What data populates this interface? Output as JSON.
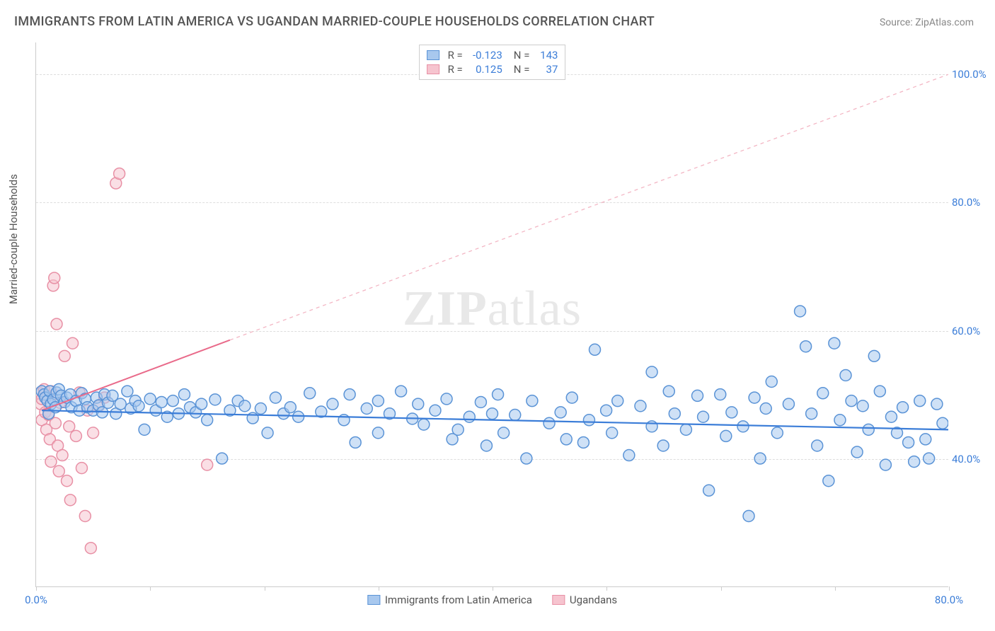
{
  "title": "IMMIGRANTS FROM LATIN AMERICA VS UGANDAN MARRIED-COUPLE HOUSEHOLDS CORRELATION CHART",
  "source": "Source: ZipAtlas.com",
  "ylabel": "Married-couple Households",
  "watermark": "ZIPatlas",
  "chart": {
    "type": "scatter",
    "xlim": [
      0,
      80
    ],
    "ylim": [
      20,
      105
    ],
    "x_ticks": [
      0,
      10,
      20,
      30,
      40,
      50,
      60,
      70,
      80
    ],
    "x_tick_labels": {
      "0": "0.0%",
      "80": "80.0%"
    },
    "y_gridlines": [
      40,
      60,
      80,
      100
    ],
    "y_tick_labels": {
      "40": "40.0%",
      "60": "60.0%",
      "80": "80.0%",
      "100": "100.0%"
    },
    "background_color": "#ffffff",
    "grid_color": "#dddddd",
    "axis_color": "#cccccc",
    "ytick_color": "#3b7dd8",
    "x_label_left_color": "#3b7dd8",
    "x_label_right_color": "#3b7dd8",
    "point_radius": 8,
    "point_stroke_width": 1.5,
    "series": [
      {
        "id": "latin",
        "label": "Immigrants from Latin America",
        "fill": "#a8c8ee",
        "stroke": "#5a93d6",
        "fill_opacity": 0.55,
        "R": "-0.123",
        "N": "143",
        "trend": {
          "x1": 0.5,
          "y1": 47.5,
          "x2": 80,
          "y2": 44.5,
          "color": "#3b7dd8",
          "width": 2.2,
          "dash": "none"
        },
        "points": [
          [
            0.5,
            50.5
          ],
          [
            0.7,
            50
          ],
          [
            0.8,
            49.5
          ],
          [
            1.0,
            49
          ],
          [
            1.1,
            47
          ],
          [
            1.2,
            50.5
          ],
          [
            1.3,
            48.5
          ],
          [
            1.5,
            49.2
          ],
          [
            1.7,
            48
          ],
          [
            1.8,
            50.3
          ],
          [
            2.0,
            50.8
          ],
          [
            2.2,
            49.8
          ],
          [
            2.5,
            48.8
          ],
          [
            2.7,
            49.5
          ],
          [
            3.0,
            50
          ],
          [
            3.1,
            48
          ],
          [
            3.5,
            49
          ],
          [
            3.8,
            47.5
          ],
          [
            4.0,
            50.2
          ],
          [
            4.3,
            49.3
          ],
          [
            4.5,
            48
          ],
          [
            5.0,
            47.5
          ],
          [
            5.3,
            49.5
          ],
          [
            5.5,
            48.3
          ],
          [
            5.8,
            47.2
          ],
          [
            6.0,
            50
          ],
          [
            6.3,
            48.7
          ],
          [
            6.7,
            49.8
          ],
          [
            7.0,
            47
          ],
          [
            7.4,
            48.5
          ],
          [
            8.0,
            50.5
          ],
          [
            8.3,
            47.8
          ],
          [
            8.7,
            49
          ],
          [
            9.0,
            48.2
          ],
          [
            9.5,
            44.5
          ],
          [
            10,
            49.3
          ],
          [
            10.5,
            47.5
          ],
          [
            11,
            48.8
          ],
          [
            11.5,
            46.5
          ],
          [
            12,
            49
          ],
          [
            12.5,
            47
          ],
          [
            13,
            50
          ],
          [
            13.5,
            48
          ],
          [
            14,
            47.2
          ],
          [
            14.5,
            48.5
          ],
          [
            15,
            46
          ],
          [
            15.7,
            49.2
          ],
          [
            16.3,
            40
          ],
          [
            17,
            47.5
          ],
          [
            17.7,
            49
          ],
          [
            18.3,
            48.2
          ],
          [
            19,
            46.3
          ],
          [
            19.7,
            47.8
          ],
          [
            20.3,
            44
          ],
          [
            21,
            49.5
          ],
          [
            21.7,
            47
          ],
          [
            22.3,
            48
          ],
          [
            23,
            46.5
          ],
          [
            24,
            50.2
          ],
          [
            25,
            47.3
          ],
          [
            26,
            48.5
          ],
          [
            27,
            46
          ],
          [
            27.5,
            50
          ],
          [
            28,
            42.5
          ],
          [
            29,
            47.8
          ],
          [
            30,
            49
          ],
          [
            30,
            44
          ],
          [
            31,
            47
          ],
          [
            32,
            50.5
          ],
          [
            33,
            46.2
          ],
          [
            33.5,
            48.5
          ],
          [
            34,
            45.3
          ],
          [
            35,
            47.5
          ],
          [
            36,
            49.3
          ],
          [
            36.5,
            43
          ],
          [
            37,
            44.5
          ],
          [
            38,
            46.5
          ],
          [
            39,
            48.8
          ],
          [
            39.5,
            42
          ],
          [
            40,
            47
          ],
          [
            40.5,
            50
          ],
          [
            41,
            44
          ],
          [
            42,
            46.8
          ],
          [
            43,
            40
          ],
          [
            43.5,
            49
          ],
          [
            45,
            45.5
          ],
          [
            46,
            47.2
          ],
          [
            46.5,
            43
          ],
          [
            47,
            49.5
          ],
          [
            48,
            42.5
          ],
          [
            48.5,
            46
          ],
          [
            49,
            57
          ],
          [
            50,
            47.5
          ],
          [
            50.5,
            44
          ],
          [
            51,
            49
          ],
          [
            52,
            40.5
          ],
          [
            53,
            48.2
          ],
          [
            54,
            53.5
          ],
          [
            54,
            45
          ],
          [
            55,
            42
          ],
          [
            55.5,
            50.5
          ],
          [
            56,
            47
          ],
          [
            57,
            44.5
          ],
          [
            58,
            49.8
          ],
          [
            58.5,
            46.5
          ],
          [
            59,
            35
          ],
          [
            60,
            50
          ],
          [
            60.5,
            43.5
          ],
          [
            61,
            47.2
          ],
          [
            62,
            45
          ],
          [
            62.5,
            31
          ],
          [
            63,
            49.5
          ],
          [
            63.5,
            40
          ],
          [
            64,
            47.8
          ],
          [
            64.5,
            52
          ],
          [
            65,
            44
          ],
          [
            66,
            48.5
          ],
          [
            67,
            63
          ],
          [
            67.5,
            57.5
          ],
          [
            68,
            47
          ],
          [
            68.5,
            42
          ],
          [
            69,
            50.2
          ],
          [
            69.5,
            36.5
          ],
          [
            70,
            58
          ],
          [
            70.5,
            46
          ],
          [
            71,
            53
          ],
          [
            71.5,
            49
          ],
          [
            72,
            41
          ],
          [
            72.5,
            48.2
          ],
          [
            73,
            44.5
          ],
          [
            73.5,
            56
          ],
          [
            74,
            50.5
          ],
          [
            74.5,
            39
          ],
          [
            75,
            46.5
          ],
          [
            75.5,
            44
          ],
          [
            76,
            48
          ],
          [
            76.5,
            42.5
          ],
          [
            77,
            39.5
          ],
          [
            77.5,
            49
          ],
          [
            78,
            43
          ],
          [
            78.3,
            40
          ],
          [
            79,
            48.5
          ],
          [
            79.5,
            45.5
          ]
        ]
      },
      {
        "id": "ugandan",
        "label": "Ugandans",
        "fill": "#f6c4cf",
        "stroke": "#e890a5",
        "fill_opacity": 0.55,
        "R": "0.125",
        "N": "37",
        "trend_solid": {
          "x1": 0.5,
          "y1": 47.5,
          "x2": 17,
          "y2": 58.5,
          "color": "#e96a8a",
          "width": 2,
          "dash": "none"
        },
        "trend_dashed": {
          "x1": 17,
          "y1": 58.5,
          "x2": 80,
          "y2": 100,
          "color": "#f3b6c4",
          "width": 1.3,
          "dash": "5,5"
        },
        "points": [
          [
            0.3,
            50.2
          ],
          [
            0.4,
            48.5
          ],
          [
            0.5,
            49.3
          ],
          [
            0.5,
            46
          ],
          [
            0.7,
            50.8
          ],
          [
            0.8,
            47.2
          ],
          [
            0.9,
            44.5
          ],
          [
            1.0,
            49.8
          ],
          [
            1.1,
            46.8
          ],
          [
            1.2,
            43
          ],
          [
            1.3,
            39.5
          ],
          [
            1.3,
            50.5
          ],
          [
            1.5,
            67
          ],
          [
            1.6,
            68.2
          ],
          [
            1.7,
            45.5
          ],
          [
            1.8,
            61
          ],
          [
            1.9,
            42
          ],
          [
            2.0,
            38
          ],
          [
            2.1,
            48.7
          ],
          [
            2.3,
            40.5
          ],
          [
            2.5,
            56
          ],
          [
            2.7,
            36.5
          ],
          [
            2.9,
            45
          ],
          [
            3.0,
            33.5
          ],
          [
            3.2,
            58
          ],
          [
            3.5,
            43.5
          ],
          [
            3.8,
            50.3
          ],
          [
            4.0,
            38.5
          ],
          [
            4.3,
            31
          ],
          [
            4.5,
            47.5
          ],
          [
            5.0,
            44
          ],
          [
            5.5,
            48.2
          ],
          [
            6,
            49.5
          ],
          [
            7,
            83
          ],
          [
            7.3,
            84.5
          ],
          [
            15,
            39
          ],
          [
            4.8,
            26
          ]
        ]
      }
    ]
  }
}
